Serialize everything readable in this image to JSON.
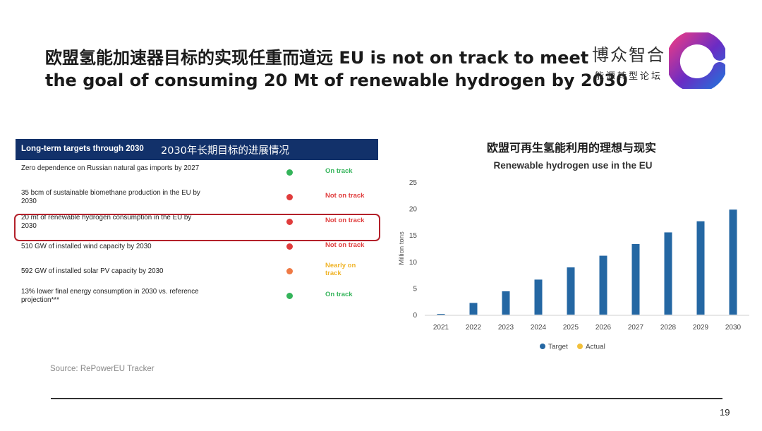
{
  "slide": {
    "title_line1": "欧盟氢能加速器目标的实现任重而道远 EU is not on track to meet",
    "title_line2": "the goal of consuming 20 Mt of renewable hydrogen by 2030",
    "source": "Source: RePowerEU Tracker",
    "page_number": "19"
  },
  "brand": {
    "name": "博众智合",
    "subtitle": "能源转型论坛",
    "logo_colors": [
      "#e23a8a",
      "#6a2cc4",
      "#2a6ad8"
    ]
  },
  "targets_table": {
    "header_en": "Long-term targets through 2030",
    "header_cn": "2030年长期目标的进展情况",
    "header_color": "#12316a",
    "highlight_color": "#b3202a",
    "rows": [
      {
        "label": "Zero dependence on Russian natural gas imports by 2027",
        "status": "On track",
        "color": "#34b45a"
      },
      {
        "label": "35 bcm of sustainable biomethane production in the EU by 2030",
        "status": "Not on track",
        "color": "#e03c3c"
      },
      {
        "label": "20 mt of renewable hydrogen consumption in the EU by 2030",
        "status": "Not on track",
        "color": "#e03c3c"
      },
      {
        "label": "510 GW of installed wind capacity by 2030",
        "status": "Not on track",
        "color": "#e03c3c"
      },
      {
        "label": "592 GW of installed solar PV capacity by 2030",
        "status": "Nearly on track",
        "color": "#f0b429",
        "dot_color": "#ef7a45"
      },
      {
        "label": "13% lower final energy consumption in 2030 vs. reference projection***",
        "status": "On track",
        "color": "#34b45a"
      }
    ]
  },
  "chart_data": {
    "type": "bar",
    "title": "Renewable hydrogen use in the EU",
    "title_cn": "欧盟可再生氢能利用的理想与现实",
    "categories": [
      "2021",
      "2022",
      "2023",
      "2024",
      "2025",
      "2026",
      "2027",
      "2028",
      "2029",
      "2030"
    ],
    "series": [
      {
        "name": "Target",
        "color": "#2467a3",
        "values": [
          0.1,
          2.2,
          4.4,
          6.6,
          8.9,
          11.1,
          13.3,
          15.5,
          17.6,
          19.8
        ]
      },
      {
        "name": "Actual",
        "color": "#f2c03a",
        "values": [
          null,
          null,
          null,
          null,
          null,
          null,
          null,
          null,
          null,
          null
        ]
      }
    ],
    "ylabel": "Million tons",
    "xlabel": "",
    "ylim": [
      0,
      25
    ],
    "yticks": [
      0,
      5,
      10,
      15,
      20,
      25
    ],
    "grid": false,
    "legend": "bottom"
  }
}
